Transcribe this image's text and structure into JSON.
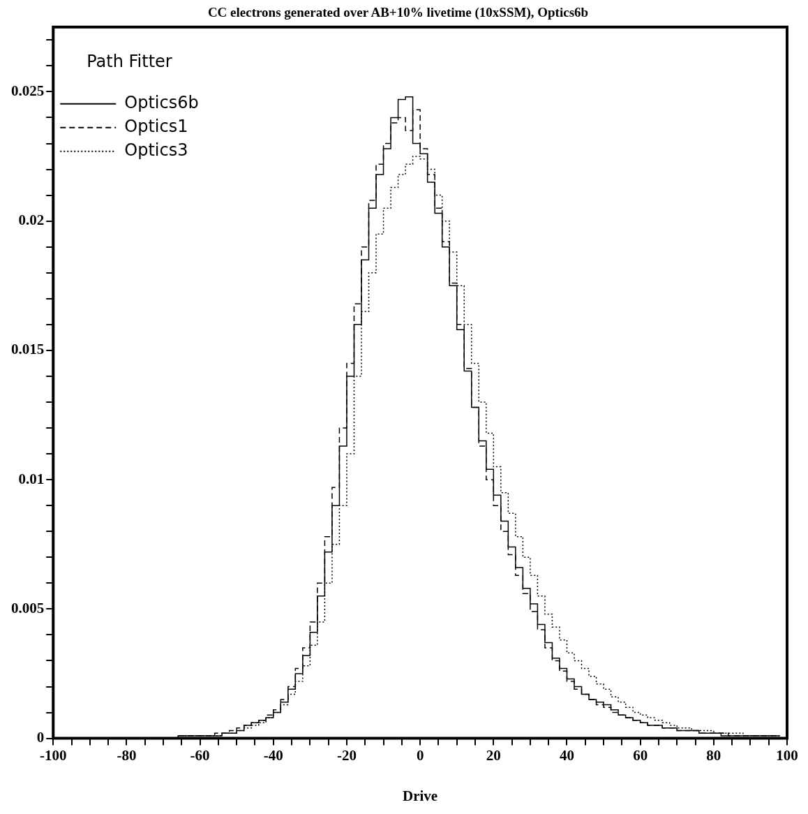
{
  "chart_data": {
    "type": "step",
    "title": "CC electrons generated over AB+10% livetime (10xSSM), Optics6b",
    "xlabel": "Drive",
    "legend_title": "Path Fitter",
    "legend": "top left",
    "x": [
      -70,
      -68,
      -66,
      -64,
      -62,
      -60,
      -58,
      -56,
      -54,
      -52,
      -50,
      -48,
      -46,
      -44,
      -42,
      -40,
      -38,
      -36,
      -34,
      -32,
      -30,
      -28,
      -26,
      -24,
      -22,
      -20,
      -18,
      -16,
      -14,
      -12,
      -10,
      -8,
      -6,
      -4,
      -2,
      0,
      2,
      4,
      6,
      8,
      10,
      12,
      14,
      16,
      18,
      20,
      22,
      24,
      26,
      28,
      30,
      32,
      34,
      36,
      38,
      40,
      42,
      44,
      46,
      48,
      50,
      52,
      54,
      56,
      58,
      60,
      62,
      64,
      66,
      68,
      70,
      72,
      74,
      76,
      78,
      80,
      82,
      84,
      86,
      88,
      90,
      92,
      94,
      96,
      98
    ],
    "series": [
      {
        "name": "Optics6b",
        "color": "#000000",
        "line_style": "solid",
        "values": [
          0,
          0,
          0.0001,
          0.0001,
          0.0001,
          0.0001,
          0.0001,
          0.0001,
          0.0002,
          0.0002,
          0.0003,
          0.0005,
          0.0006,
          0.0007,
          0.0008,
          0.001,
          0.0014,
          0.0019,
          0.0025,
          0.0032,
          0.0041,
          0.0055,
          0.0072,
          0.009,
          0.0113,
          0.014,
          0.016,
          0.0185,
          0.0205,
          0.0218,
          0.0228,
          0.024,
          0.0247,
          0.0248,
          0.023,
          0.0226,
          0.0215,
          0.0203,
          0.019,
          0.0175,
          0.0158,
          0.0142,
          0.0128,
          0.0115,
          0.0104,
          0.0094,
          0.0084,
          0.0074,
          0.0066,
          0.0058,
          0.0052,
          0.0044,
          0.0037,
          0.0031,
          0.0027,
          0.0023,
          0.002,
          0.0017,
          0.0015,
          0.0014,
          0.0013,
          0.0011,
          0.0009,
          0.0008,
          0.0007,
          0.0006,
          0.0005,
          0.0005,
          0.0004,
          0.0004,
          0.0003,
          0.0003,
          0.0003,
          0.0002,
          0.0002,
          0.0002,
          0.0001,
          0.0001,
          0.0001,
          0.0001,
          0.0001,
          0.0001,
          0.0001,
          0.0001,
          0.0001
        ]
      },
      {
        "name": "Optics1",
        "color": "#000000",
        "line_style": "dashed",
        "values": [
          0,
          0,
          0.0001,
          0.0001,
          0.0001,
          0.0001,
          0.0001,
          0.0002,
          0.0002,
          0.0003,
          0.0004,
          0.0005,
          0.0006,
          0.0007,
          0.0009,
          0.0011,
          0.0015,
          0.002,
          0.0027,
          0.0035,
          0.0045,
          0.006,
          0.0078,
          0.0097,
          0.012,
          0.0145,
          0.0168,
          0.019,
          0.0208,
          0.0222,
          0.023,
          0.0238,
          0.024,
          0.0235,
          0.0243,
          0.0228,
          0.0218,
          0.0205,
          0.0192,
          0.0176,
          0.016,
          0.0143,
          0.0128,
          0.0113,
          0.01,
          0.009,
          0.008,
          0.0071,
          0.0063,
          0.0056,
          0.0049,
          0.0042,
          0.0035,
          0.003,
          0.0026,
          0.0022,
          0.0019,
          0.0017,
          0.0015,
          0.0013,
          0.0012,
          0.001,
          0.0009,
          0.0008,
          0.0007,
          0.0006,
          0.0005,
          0.0005,
          0.0004,
          0.0004,
          0.0003,
          0.0003,
          0.0003,
          0.0002,
          0.0002,
          0.0002,
          0.0002,
          0.0001,
          0.0001,
          0.0001,
          0.0001,
          0.0001,
          0.0001,
          0.0001,
          0.0001
        ]
      },
      {
        "name": "Optics3",
        "color": "#000000",
        "line_style": "dotted",
        "values": [
          0,
          0,
          0,
          0.0001,
          0.0001,
          0.0001,
          0.0001,
          0.0001,
          0.0002,
          0.0002,
          0.0003,
          0.0004,
          0.0005,
          0.0006,
          0.0008,
          0.001,
          0.0013,
          0.0017,
          0.0022,
          0.0028,
          0.0036,
          0.0045,
          0.006,
          0.0075,
          0.009,
          0.011,
          0.014,
          0.0165,
          0.018,
          0.0195,
          0.0205,
          0.0213,
          0.0218,
          0.0222,
          0.0225,
          0.0224,
          0.022,
          0.021,
          0.02,
          0.0188,
          0.0175,
          0.016,
          0.0145,
          0.013,
          0.0118,
          0.0105,
          0.0095,
          0.0087,
          0.0078,
          0.007,
          0.0063,
          0.0055,
          0.0048,
          0.0043,
          0.0038,
          0.0033,
          0.003,
          0.0027,
          0.0024,
          0.0021,
          0.0019,
          0.0016,
          0.0014,
          0.0012,
          0.001,
          0.0009,
          0.0008,
          0.0007,
          0.0006,
          0.0005,
          0.0004,
          0.0004,
          0.0003,
          0.0003,
          0.0003,
          0.0002,
          0.0002,
          0.0002,
          0.0002,
          0.0001,
          0.0001,
          0.0001,
          0.0001,
          0.0001,
          0.0001
        ]
      }
    ],
    "xlim": [
      -100,
      100
    ],
    "xticks": [
      -100,
      {
        "value": -95,
        "label": null
      },
      {
        "value": -90,
        "label": null
      },
      {
        "value": -85,
        "label": null
      },
      -80,
      {
        "value": -75,
        "label": null
      },
      {
        "value": -70,
        "label": null
      },
      {
        "value": -65,
        "label": null
      },
      -60,
      {
        "value": -55,
        "label": null
      },
      {
        "value": -50,
        "label": null
      },
      {
        "value": -45,
        "label": null
      },
      -40,
      {
        "value": -35,
        "label": null
      },
      {
        "value": -30,
        "label": null
      },
      {
        "value": -25,
        "label": null
      },
      -20,
      {
        "value": -15,
        "label": null
      },
      {
        "value": -10,
        "label": null
      },
      {
        "value": -5,
        "label": null
      },
      0,
      {
        "value": 5,
        "label": null
      },
      {
        "value": 10,
        "label": null
      },
      {
        "value": 15,
        "label": null
      },
      20,
      {
        "value": 25,
        "label": null
      },
      {
        "value": 30,
        "label": null
      },
      {
        "value": 35,
        "label": null
      },
      40,
      {
        "value": 45,
        "label": null
      },
      {
        "value": 50,
        "label": null
      },
      {
        "value": 55,
        "label": null
      },
      60,
      {
        "value": 65,
        "label": null
      },
      {
        "value": 70,
        "label": null
      },
      {
        "value": 75,
        "label": null
      },
      80,
      {
        "value": 85,
        "label": null
      },
      {
        "value": 90,
        "label": null
      },
      {
        "value": 95,
        "label": null
      },
      100
    ],
    "ylim": [
      0,
      0.0275
    ],
    "yticks": [
      0,
      {
        "value": 0.001,
        "label": null
      },
      {
        "value": 0.002,
        "label": null
      },
      {
        "value": 0.003,
        "label": null
      },
      {
        "value": 0.004,
        "label": null
      },
      0.005,
      {
        "value": 0.006,
        "label": null
      },
      {
        "value": 0.007,
        "label": null
      },
      {
        "value": 0.008,
        "label": null
      },
      {
        "value": 0.009,
        "label": null
      },
      0.01,
      {
        "value": 0.011,
        "label": null
      },
      {
        "value": 0.012,
        "label": null
      },
      {
        "value": 0.013,
        "label": null
      },
      {
        "value": 0.014,
        "label": null
      },
      0.015,
      {
        "value": 0.016,
        "label": null
      },
      {
        "value": 0.017,
        "label": null
      },
      {
        "value": 0.018,
        "label": null
      },
      {
        "value": 0.019,
        "label": null
      },
      0.02,
      {
        "value": 0.021,
        "label": null
      },
      {
        "value": 0.022,
        "label": null
      },
      {
        "value": 0.023,
        "label": null
      },
      {
        "value": 0.024,
        "label": null
      },
      0.025,
      {
        "value": 0.026,
        "label": null
      },
      {
        "value": 0.027,
        "label": null
      }
    ]
  }
}
